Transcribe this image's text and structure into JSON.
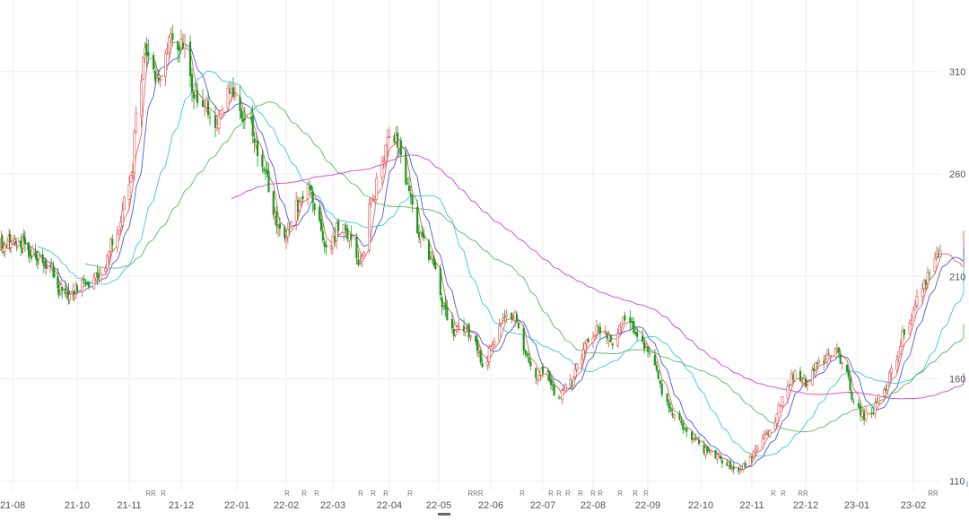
{
  "chart_data": {
    "type": "candlestick",
    "title": "",
    "xlabel": "",
    "ylabel": "",
    "ylim": [
      105,
      345
    ],
    "y_axis_side": "right",
    "grid": true,
    "y_ticks": [
      110,
      160,
      210,
      260,
      310
    ],
    "x_ticks": [
      "21-08",
      "21-10",
      "21-11",
      "21-12",
      "22-01",
      "22-02",
      "22-03",
      "22-04",
      "22-05",
      "22-06",
      "22-07",
      "22-08",
      "22-09",
      "22-10",
      "22-11",
      "22-12",
      "23-01",
      "23-02"
    ],
    "colors": {
      "up": "#e05050",
      "down": "#1a9a1a",
      "ma_fast": "#e06060",
      "ma_mid": "#4a5ad8",
      "ma_slow": "#40c4e0",
      "ma_long": "#5ab85a",
      "ma_longest": "#d040d8",
      "grid": "#eeeeee",
      "axis_text": "#555555"
    },
    "markers": [
      {
        "month": "21-11",
        "label": "RR"
      },
      {
        "month": "21-11",
        "label": "R"
      },
      {
        "month": "22-02",
        "label": "R"
      },
      {
        "month": "22-02",
        "label": "R"
      },
      {
        "month": "22-02",
        "label": "R"
      },
      {
        "month": "22-03",
        "label": "R"
      },
      {
        "month": "22-03",
        "label": "R"
      },
      {
        "month": "22-03",
        "label": "R"
      },
      {
        "month": "22-04",
        "label": "R"
      },
      {
        "month": "22-05",
        "label": "RRR"
      },
      {
        "month": "22-06",
        "label": "R"
      },
      {
        "month": "22-07",
        "label": "R"
      },
      {
        "month": "22-07",
        "label": "R"
      },
      {
        "month": "22-07",
        "label": "R"
      },
      {
        "month": "22-07",
        "label": "R"
      },
      {
        "month": "22-08",
        "label": "R"
      },
      {
        "month": "22-08",
        "label": "R"
      },
      {
        "month": "22-08",
        "label": "R"
      },
      {
        "month": "22-08",
        "label": "R"
      },
      {
        "month": "22-08",
        "label": "R"
      },
      {
        "month": "22-09",
        "label": "R"
      },
      {
        "month": "22-09",
        "label": "R"
      },
      {
        "month": "22-11",
        "label": "RR"
      },
      {
        "month": "22-11",
        "label": "RR"
      },
      {
        "month": "22-11",
        "label": "R"
      },
      {
        "month": "23-02",
        "label": "RRRR"
      }
    ],
    "marker_positions": [
      168,
      182,
      320,
      339,
      353,
      402,
      416,
      430,
      457,
      530,
      582,
      614,
      623,
      633,
      647,
      661,
      669,
      691,
      708,
      720,
      862,
      873,
      895,
      1040,
      0,
      0
    ],
    "price_anchors": [
      [
        "2021-07-15",
        225
      ],
      [
        "2021-08-05",
        228
      ],
      [
        "2021-08-20",
        222
      ],
      [
        "2021-09-05",
        215
      ],
      [
        "2021-09-15",
        205
      ],
      [
        "2021-09-25",
        200
      ],
      [
        "2021-10-05",
        206
      ],
      [
        "2021-10-15",
        212
      ],
      [
        "2021-10-25",
        232
      ],
      [
        "2021-11-02",
        258
      ],
      [
        "2021-11-06",
        295
      ],
      [
        "2021-11-10",
        318
      ],
      [
        "2021-11-18",
        305
      ],
      [
        "2021-11-25",
        330
      ],
      [
        "2021-12-02",
        322
      ],
      [
        "2021-12-08",
        298
      ],
      [
        "2021-12-14",
        295
      ],
      [
        "2021-12-20",
        285
      ],
      [
        "2021-12-28",
        300
      ],
      [
        "2022-01-08",
        285
      ],
      [
        "2022-01-18",
        262
      ],
      [
        "2022-01-26",
        238
      ],
      [
        "2022-02-02",
        230
      ],
      [
        "2022-02-08",
        245
      ],
      [
        "2022-02-14",
        255
      ],
      [
        "2022-02-20",
        238
      ],
      [
        "2022-02-26",
        222
      ],
      [
        "2022-03-05",
        235
      ],
      [
        "2022-03-10",
        230
      ],
      [
        "2022-03-16",
        218
      ],
      [
        "2022-03-22",
        245
      ],
      [
        "2022-03-28",
        268
      ],
      [
        "2022-04-01",
        280
      ],
      [
        "2022-04-06",
        275
      ],
      [
        "2022-04-12",
        255
      ],
      [
        "2022-04-18",
        230
      ],
      [
        "2022-04-26",
        220
      ],
      [
        "2022-05-04",
        195
      ],
      [
        "2022-05-10",
        182
      ],
      [
        "2022-05-16",
        185
      ],
      [
        "2022-05-22",
        180
      ],
      [
        "2022-05-28",
        165
      ],
      [
        "2022-06-02",
        178
      ],
      [
        "2022-06-08",
        188
      ],
      [
        "2022-06-14",
        192
      ],
      [
        "2022-06-20",
        175
      ],
      [
        "2022-06-26",
        160
      ],
      [
        "2022-07-02",
        165
      ],
      [
        "2022-07-10",
        152
      ],
      [
        "2022-07-18",
        158
      ],
      [
        "2022-07-24",
        172
      ],
      [
        "2022-07-30",
        180
      ],
      [
        "2022-08-06",
        185
      ],
      [
        "2022-08-12",
        178
      ],
      [
        "2022-08-18",
        188
      ],
      [
        "2022-08-24",
        185
      ],
      [
        "2022-08-30",
        175
      ],
      [
        "2022-09-05",
        165
      ],
      [
        "2022-09-10",
        150
      ],
      [
        "2022-09-16",
        142
      ],
      [
        "2022-09-22",
        135
      ],
      [
        "2022-09-28",
        130
      ],
      [
        "2022-10-04",
        125
      ],
      [
        "2022-10-10",
        122
      ],
      [
        "2022-10-18",
        118
      ],
      [
        "2022-10-24",
        115
      ],
      [
        "2022-10-30",
        120
      ],
      [
        "2022-11-05",
        128
      ],
      [
        "2022-11-12",
        135
      ],
      [
        "2022-11-18",
        150
      ],
      [
        "2022-11-24",
        162
      ],
      [
        "2022-11-30",
        158
      ],
      [
        "2022-12-06",
        165
      ],
      [
        "2022-12-12",
        170
      ],
      [
        "2022-12-18",
        175
      ],
      [
        "2022-12-24",
        168
      ],
      [
        "2022-12-30",
        150
      ],
      [
        "2023-01-05",
        142
      ],
      [
        "2023-01-10",
        145
      ],
      [
        "2023-01-16",
        155
      ],
      [
        "2023-01-22",
        170
      ],
      [
        "2023-01-28",
        185
      ],
      [
        "2023-02-04",
        200
      ],
      [
        "2023-02-10",
        212
      ],
      [
        "2023-02-16",
        222
      ],
      [
        "2023-02-22",
        218
      ],
      [
        "2023-02-28",
        212
      ],
      [
        "2023-03-06",
        230
      ],
      [
        "2023-03-12",
        235
      ]
    ]
  }
}
